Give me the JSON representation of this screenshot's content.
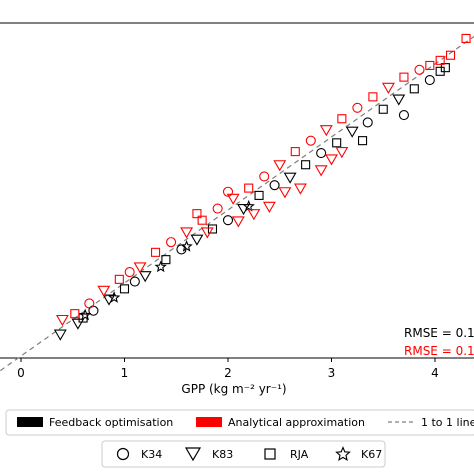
{
  "chart_data": {
    "type": "scatter",
    "xlabel": "GPP (kg m⁻² yr⁻¹)",
    "xlim": [
      -0.2,
      4.4
    ],
    "ylim": [
      -0.2,
      4.4
    ],
    "x_ticks": [
      0,
      1,
      2,
      3,
      4
    ],
    "grid": false,
    "series": [
      {
        "name": "Feedback optimisation",
        "color": "#000000"
      },
      {
        "name": "Analytical approximation",
        "color": "#ff0000"
      }
    ],
    "sites": [
      {
        "name": "K34",
        "marker": "circle"
      },
      {
        "name": "K83",
        "marker": "triangle-down"
      },
      {
        "name": "RJA",
        "marker": "square"
      },
      {
        "name": "K67",
        "marker": "star"
      }
    ],
    "reference_line": {
      "label": "1 to 1 line",
      "color": "#7f7f7f",
      "style": "dashed"
    },
    "annotations": [
      {
        "text": "RMSE = 0.1",
        "color": "#000000"
      },
      {
        "text": "RMSE = 0.1",
        "color": "#ff0000"
      }
    ],
    "points": {
      "feedback": [
        [
          0.38,
          0.3,
          "K83"
        ],
        [
          0.55,
          0.45,
          "K83"
        ],
        [
          0.6,
          0.52,
          "RJA"
        ],
        [
          0.62,
          0.56,
          "K67"
        ],
        [
          0.7,
          0.62,
          "K34"
        ],
        [
          0.85,
          0.78,
          "K83"
        ],
        [
          0.9,
          0.8,
          "K67"
        ],
        [
          1.0,
          0.92,
          "RJA"
        ],
        [
          1.1,
          1.02,
          "K34"
        ],
        [
          1.2,
          1.1,
          "K83"
        ],
        [
          1.35,
          1.22,
          "K67"
        ],
        [
          1.4,
          1.32,
          "RJA"
        ],
        [
          1.55,
          1.46,
          "K34"
        ],
        [
          1.7,
          1.6,
          "K83"
        ],
        [
          1.85,
          1.74,
          "RJA"
        ],
        [
          2.0,
          1.86,
          "K34"
        ],
        [
          2.15,
          2.02,
          "K83"
        ],
        [
          2.3,
          2.2,
          "RJA"
        ],
        [
          2.45,
          2.34,
          "K34"
        ],
        [
          2.6,
          2.45,
          "K83"
        ],
        [
          2.75,
          2.62,
          "RJA"
        ],
        [
          2.9,
          2.78,
          "K34"
        ],
        [
          3.05,
          2.92,
          "RJA"
        ],
        [
          3.2,
          3.08,
          "K83"
        ],
        [
          3.35,
          3.2,
          "K34"
        ],
        [
          3.5,
          3.38,
          "RJA"
        ],
        [
          3.65,
          3.52,
          "K83"
        ],
        [
          3.8,
          3.66,
          "RJA"
        ],
        [
          3.95,
          3.78,
          "K34"
        ],
        [
          4.05,
          3.9,
          "RJA"
        ],
        [
          3.7,
          3.3,
          "K34"
        ],
        [
          3.3,
          2.95,
          "RJA"
        ],
        [
          4.1,
          3.95,
          "RJA"
        ],
        [
          2.2,
          2.05,
          "K67"
        ],
        [
          1.6,
          1.5,
          "K67"
        ]
      ],
      "analytical": [
        [
          0.4,
          0.5,
          "K83"
        ],
        [
          0.52,
          0.58,
          "RJA"
        ],
        [
          0.66,
          0.72,
          "K34"
        ],
        [
          0.8,
          0.9,
          "K83"
        ],
        [
          0.95,
          1.05,
          "RJA"
        ],
        [
          1.05,
          1.15,
          "K34"
        ],
        [
          1.15,
          1.22,
          "K83"
        ],
        [
          1.3,
          1.42,
          "RJA"
        ],
        [
          1.45,
          1.56,
          "K34"
        ],
        [
          1.6,
          1.7,
          "K83"
        ],
        [
          1.75,
          1.86,
          "RJA"
        ],
        [
          1.9,
          2.02,
          "K34"
        ],
        [
          2.05,
          2.16,
          "K83"
        ],
        [
          2.2,
          2.3,
          "RJA"
        ],
        [
          2.35,
          2.46,
          "K34"
        ],
        [
          2.5,
          2.62,
          "K83"
        ],
        [
          2.65,
          2.8,
          "RJA"
        ],
        [
          2.8,
          2.95,
          "K34"
        ],
        [
          2.95,
          3.1,
          "K83"
        ],
        [
          3.1,
          3.25,
          "RJA"
        ],
        [
          3.25,
          3.4,
          "K34"
        ],
        [
          3.4,
          3.55,
          "RJA"
        ],
        [
          3.55,
          3.68,
          "K83"
        ],
        [
          3.7,
          3.82,
          "RJA"
        ],
        [
          3.85,
          3.92,
          "K34"
        ],
        [
          3.95,
          3.98,
          "RJA"
        ],
        [
          4.05,
          4.05,
          "RJA"
        ],
        [
          4.15,
          4.12,
          "RJA"
        ],
        [
          4.3,
          4.35,
          "RJA"
        ],
        [
          2.1,
          1.85,
          "K83"
        ],
        [
          2.4,
          2.05,
          "K83"
        ],
        [
          2.7,
          2.3,
          "K83"
        ],
        [
          2.9,
          2.55,
          "K83"
        ],
        [
          3.1,
          2.8,
          "K83"
        ],
        [
          2.55,
          2.25,
          "K83"
        ],
        [
          2.25,
          1.95,
          "K83"
        ],
        [
          1.8,
          1.7,
          "K83"
        ],
        [
          3.0,
          2.7,
          "K83"
        ],
        [
          2.0,
          2.25,
          "K34"
        ],
        [
          1.7,
          1.95,
          "RJA"
        ]
      ]
    }
  }
}
